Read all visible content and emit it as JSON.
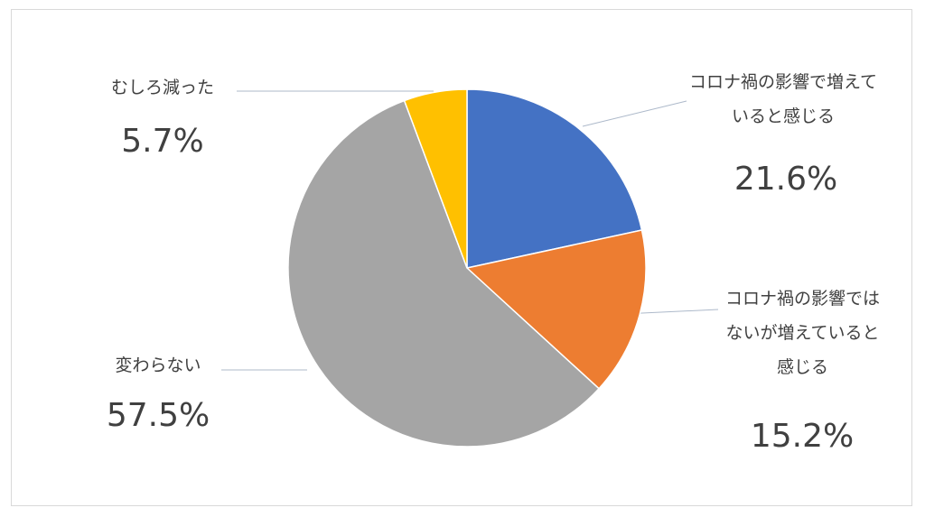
{
  "chart_data": {
    "type": "pie",
    "categories": [
      "コロナ禍の影響で増えていると感じる",
      "コロナ禍の影響ではないが増えていると感じる",
      "変わらない",
      "むしろ減った"
    ],
    "values": [
      21.6,
      15.2,
      57.5,
      5.7
    ],
    "value_labels": [
      "21.6%",
      "15.2%",
      "57.5%",
      "5.7%"
    ],
    "colors": [
      "#4472c4",
      "#ed7d31",
      "#a5a5a5",
      "#ffc000"
    ]
  }
}
